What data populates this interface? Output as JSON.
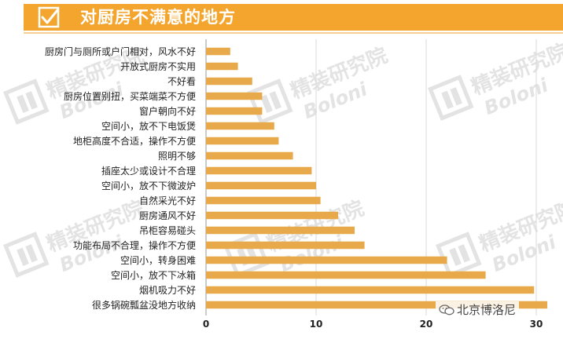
{
  "header": {
    "title": "对厨房不满意的地方",
    "color": "#f3a52e"
  },
  "watermark": {
    "org_text": "精装研究院",
    "brand_text": "Boloni"
  },
  "credit": {
    "icon": "wechat-icon",
    "text": "北京博洛尼"
  },
  "chart_data": {
    "type": "bar",
    "orientation": "horizontal",
    "title": "",
    "xlabel": "",
    "ylabel": "",
    "bar_color": "#e8a94a",
    "grid": true,
    "xlim": [
      0,
      31
    ],
    "xticks": [
      0,
      10,
      20,
      30
    ],
    "categories": [
      "厨房门与厕所或户门相对，风水不好",
      "开放式厨房不实用",
      "不好看",
      "厨房位置别扭，买菜端菜不方便",
      "窗户朝向不好",
      "空间小，放不下电饭煲",
      "地柜高度不合适，操作不方便",
      "照明不够",
      "插座太少或设计不合理",
      "空间小，放不下微波炉",
      "自然采光不好",
      "厨房通风不好",
      "吊柜容易碰头",
      "功能布局不合理，操作不方便",
      "空间小，转身困难",
      "空间小，放不下冰箱",
      "烟机吸力不好",
      "很多锅碗瓢盆没地方收纳"
    ],
    "values": [
      2.2,
      2.9,
      4.2,
      5.1,
      5.1,
      6.2,
      6.6,
      7.9,
      9.6,
      10.0,
      10.4,
      12.0,
      13.5,
      14.4,
      21.9,
      25.4,
      29.8,
      31.0
    ]
  }
}
